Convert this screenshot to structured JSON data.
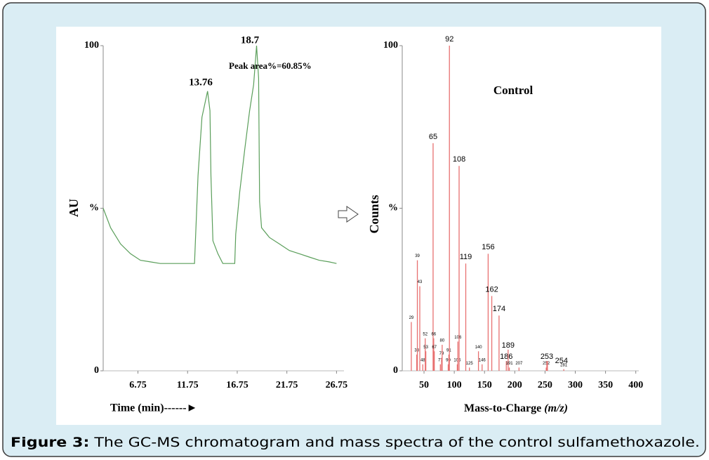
{
  "chart_data": [
    {
      "type": "line",
      "y_label": "AU",
      "x_label": "Time (min)------►",
      "annotations": [
        "13.76",
        "18.7",
        "Peak area%=60.85%"
      ],
      "color": "#5a9e5a",
      "x": [
        3.25,
        4,
        5,
        6,
        7,
        8,
        9,
        10,
        11,
        12,
        12.45,
        12.8,
        13.2,
        13.76,
        14.0,
        14.1,
        14.3,
        14.8,
        15.3,
        16.0,
        16.5,
        16.6,
        17.0,
        17.5,
        18.0,
        18.4,
        18.7,
        18.9,
        19.0,
        19.2,
        20,
        21,
        22,
        23,
        24,
        25,
        26,
        26.75
      ],
      "values": [
        50,
        44,
        39,
        36,
        34,
        33.5,
        33,
        33,
        33,
        33,
        33,
        60,
        78,
        86,
        80,
        60,
        40,
        36,
        33,
        33,
        33,
        42,
        55,
        68,
        80,
        88,
        100,
        90,
        52,
        44,
        41,
        39,
        37,
        36,
        35,
        34,
        33.5,
        33
      ],
      "xlim": [
        3.25,
        27.5
      ],
      "xticks": [
        6.75,
        11.75,
        16.75,
        21.75,
        26.75
      ],
      "ylim": [
        0,
        100
      ],
      "yticks": [
        0,
        {
          "value": 50,
          "label": "%"
        },
        100
      ]
    },
    {
      "type": "bar",
      "title": "Control",
      "y_label": "Counts",
      "x_label": "Mass-to-Charge",
      "x_label_unit": "(m/z)",
      "color": "#e87070",
      "x": [
        29,
        38,
        39,
        43,
        48,
        52,
        53,
        65,
        66,
        67,
        77,
        79,
        80,
        90,
        91,
        92,
        105,
        106,
        108,
        119,
        125,
        140,
        146,
        156,
        162,
        174,
        186,
        189,
        191,
        207,
        252,
        253,
        254,
        281
      ],
      "values": [
        15,
        5,
        34,
        26,
        2,
        10,
        6,
        70,
        10,
        6,
        2,
        4,
        8,
        2,
        5,
        100,
        2,
        9,
        63,
        33,
        1,
        6,
        2,
        36,
        23,
        17,
        3,
        6.5,
        1,
        1,
        1,
        3,
        3,
        0.5
      ],
      "xlim": [
        14,
        405
      ],
      "xticks": [
        50,
        100,
        150,
        200,
        250,
        300,
        350,
        400
      ],
      "ylim": [
        0,
        100
      ],
      "yticks": [
        0,
        {
          "value": 50,
          "label": "%"
        },
        100
      ]
    }
  ],
  "caption": {
    "label": "Figure 3:",
    "text": " The GC-MS chromatogram and mass spectra of the control sulfamethoxazole."
  }
}
